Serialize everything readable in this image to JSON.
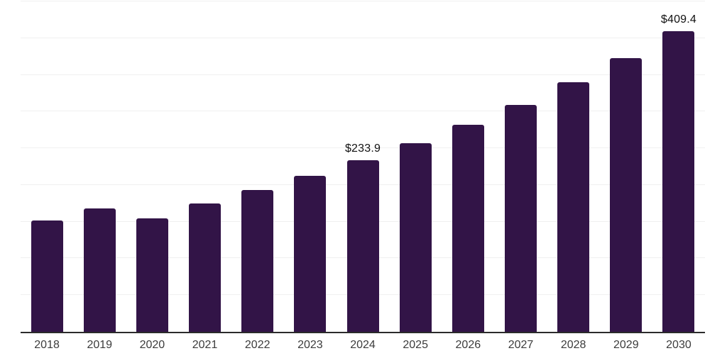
{
  "chart_data": {
    "type": "bar",
    "title": "",
    "xlabel": "",
    "ylabel": "",
    "categories": [
      "2018",
      "2019",
      "2020",
      "2021",
      "2022",
      "2023",
      "2024",
      "2025",
      "2026",
      "2027",
      "2028",
      "2029",
      "2030"
    ],
    "values": [
      151.6,
      167.8,
      154.8,
      174.7,
      192.7,
      212.6,
      233.9,
      256.8,
      281.9,
      309.5,
      339.7,
      373.0,
      409.4
    ],
    "data_labels": [
      "",
      "",
      "",
      "",
      "",
      "",
      "$233.9",
      "",
      "",
      "",
      "",
      "",
      "$409.4"
    ],
    "ylim": [
      0,
      450
    ],
    "gridline_step": 50,
    "grid_on": true,
    "legend": "none",
    "colors": {
      "bar": "#321447",
      "gridline": "#f0f0f0",
      "axis_line": "#2b2b2b",
      "tick_label": "#3c3c3c",
      "data_label": "#111111",
      "background": "#ffffff"
    }
  }
}
